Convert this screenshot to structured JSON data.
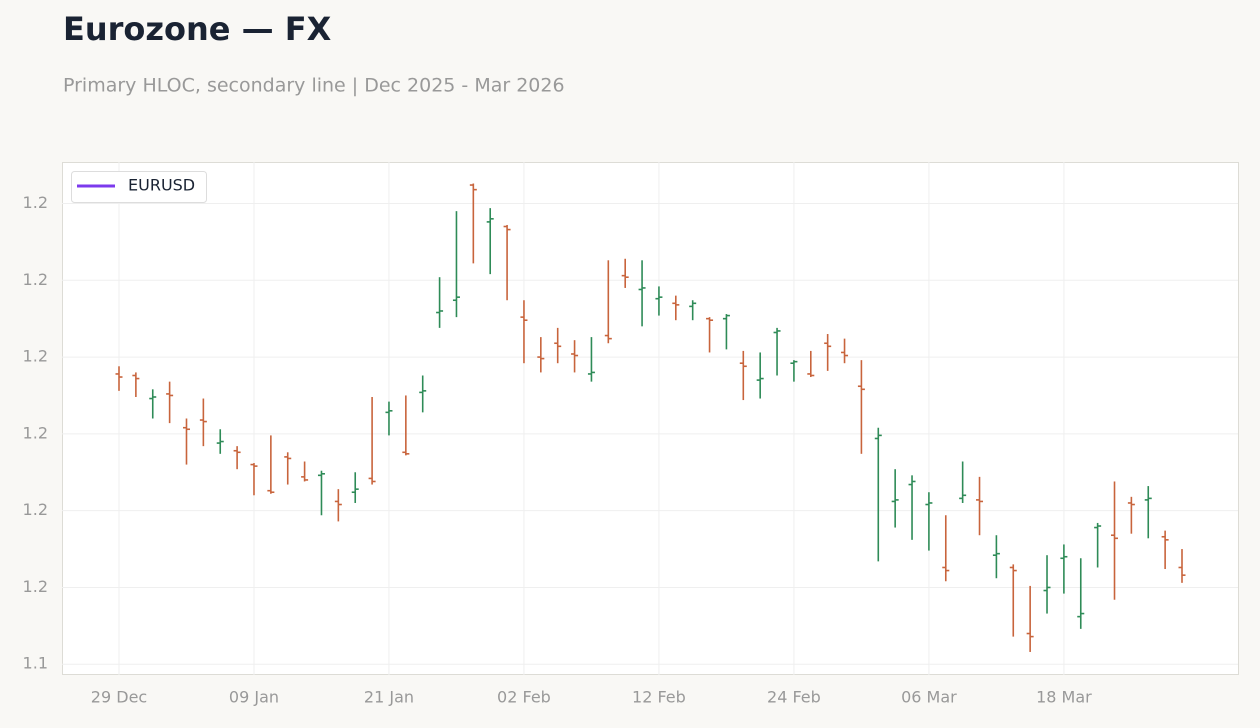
{
  "chart_data": {
    "type": "ohlc",
    "title": "Eurozone — FX",
    "subtitle": "Primary HLOC, secondary line | Dec 2025 - Mar 2026",
    "categories": [
      "29 Dec",
      null,
      null,
      null,
      null,
      null,
      null,
      null,
      "09 Jan",
      null,
      null,
      null,
      null,
      null,
      null,
      null,
      "21 Jan",
      null,
      null,
      null,
      null,
      null,
      null,
      null,
      "02 Feb",
      null,
      null,
      null,
      null,
      null,
      null,
      null,
      "12 Feb",
      null,
      null,
      null,
      null,
      null,
      null,
      null,
      "24 Feb",
      null,
      null,
      null,
      null,
      null,
      null,
      null,
      "06 Mar",
      null,
      null,
      null,
      null,
      null,
      null,
      null,
      "18 Mar",
      null,
      null,
      null,
      null,
      null,
      null,
      null
    ],
    "series": [
      {
        "name": "EURUSD",
        "color": "#7c3aed",
        "open": [
          1.1689,
          1.1688,
          1.1673,
          1.1676,
          1.1654,
          1.1659,
          1.1644,
          1.1639,
          1.163,
          1.1613,
          1.1635,
          1.1622,
          1.1623,
          1.1606,
          1.1612,
          1.1621,
          1.1664,
          1.1638,
          1.1677,
          1.1729,
          1.1737,
          1.1812,
          1.1788,
          1.1785,
          1.1726,
          1.17,
          1.1709,
          1.1702,
          1.1689,
          1.1714,
          1.1753,
          1.1744,
          1.1738,
          1.1735,
          1.1733,
          1.1725,
          1.1725,
          1.1696,
          1.1685,
          1.1716,
          1.1696,
          1.1689,
          1.1709,
          1.1703,
          1.1681,
          1.1647,
          1.1606,
          1.1617,
          1.1604,
          1.1563,
          1.1608,
          1.1607,
          1.1571,
          1.1563,
          1.152,
          1.1548,
          1.1569,
          1.1531,
          1.1589,
          1.1584,
          1.1605,
          1.1607,
          1.1583,
          1.1563
        ],
        "high": [
          1.1694,
          1.169,
          1.1679,
          1.1684,
          1.166,
          1.1673,
          1.1653,
          1.1642,
          1.1631,
          1.1649,
          1.1638,
          1.1632,
          1.1626,
          1.1614,
          1.1625,
          1.1674,
          1.1671,
          1.1675,
          1.1688,
          1.1752,
          1.1795,
          1.1813,
          1.1797,
          1.1786,
          1.1737,
          1.1713,
          1.1719,
          1.1711,
          1.1713,
          1.1763,
          1.1764,
          1.1763,
          1.1746,
          1.174,
          1.1737,
          1.1726,
          1.1728,
          1.1704,
          1.1703,
          1.1719,
          1.1698,
          1.1704,
          1.1715,
          1.1712,
          1.1698,
          1.1654,
          1.1627,
          1.1623,
          1.1612,
          1.1597,
          1.1632,
          1.1622,
          1.1584,
          1.1565,
          1.1551,
          1.1571,
          1.1578,
          1.1569,
          1.1592,
          1.1619,
          1.1609,
          1.1616,
          1.1587,
          1.1575
        ],
        "low": [
          1.1678,
          1.1674,
          1.166,
          1.1657,
          1.163,
          1.1642,
          1.1637,
          1.1627,
          1.161,
          1.1611,
          1.1617,
          1.1619,
          1.1597,
          1.1593,
          1.1605,
          1.1617,
          1.1649,
          1.1636,
          1.1664,
          1.1719,
          1.1726,
          1.1761,
          1.1754,
          1.1737,
          1.1696,
          1.169,
          1.1696,
          1.169,
          1.1684,
          1.1709,
          1.1745,
          1.172,
          1.1727,
          1.1724,
          1.1724,
          1.1703,
          1.1705,
          1.1672,
          1.1673,
          1.1688,
          1.1684,
          1.1687,
          1.1691,
          1.1696,
          1.1637,
          1.1567,
          1.1589,
          1.1581,
          1.1574,
          1.1554,
          1.1605,
          1.1584,
          1.1556,
          1.1518,
          1.1508,
          1.1533,
          1.1546,
          1.1523,
          1.1563,
          1.1542,
          1.1585,
          1.1582,
          1.1562,
          1.1553
        ],
        "close": [
          1.1687,
          1.1686,
          1.1674,
          1.1675,
          1.1653,
          1.1658,
          1.1645,
          1.1638,
          1.1629,
          1.1612,
          1.1634,
          1.162,
          1.1624,
          1.1604,
          1.1614,
          1.1619,
          1.1665,
          1.1637,
          1.1678,
          1.173,
          1.1739,
          1.1809,
          1.179,
          1.1783,
          1.1724,
          1.1699,
          1.1707,
          1.1701,
          1.169,
          1.1712,
          1.1752,
          1.1745,
          1.1739,
          1.1734,
          1.1735,
          1.1724,
          1.1727,
          1.1694,
          1.1686,
          1.1717,
          1.1697,
          1.1688,
          1.1707,
          1.1701,
          1.1679,
          1.1649,
          1.1607,
          1.1619,
          1.1605,
          1.1561,
          1.161,
          1.1606,
          1.1572,
          1.1561,
          1.1518,
          1.155,
          1.157,
          1.1533,
          1.159,
          1.1582,
          1.1604,
          1.1608,
          1.1581,
          1.1558
        ]
      }
    ],
    "up_color": "#2e8b57",
    "down_color": "#c8643c",
    "ylim": [
      1.1493,
      1.1827
    ],
    "yticks": [
      {
        "value": 1.15,
        "label": "1.1"
      },
      {
        "value": 1.155,
        "label": "1.2"
      },
      {
        "value": 1.16,
        "label": "1.2"
      },
      {
        "value": 1.165,
        "label": "1.2"
      },
      {
        "value": 1.17,
        "label": "1.2"
      },
      {
        "value": 1.175,
        "label": "1.2"
      },
      {
        "value": 1.18,
        "label": "1.2"
      }
    ],
    "grid": true,
    "legend": "upper left"
  }
}
